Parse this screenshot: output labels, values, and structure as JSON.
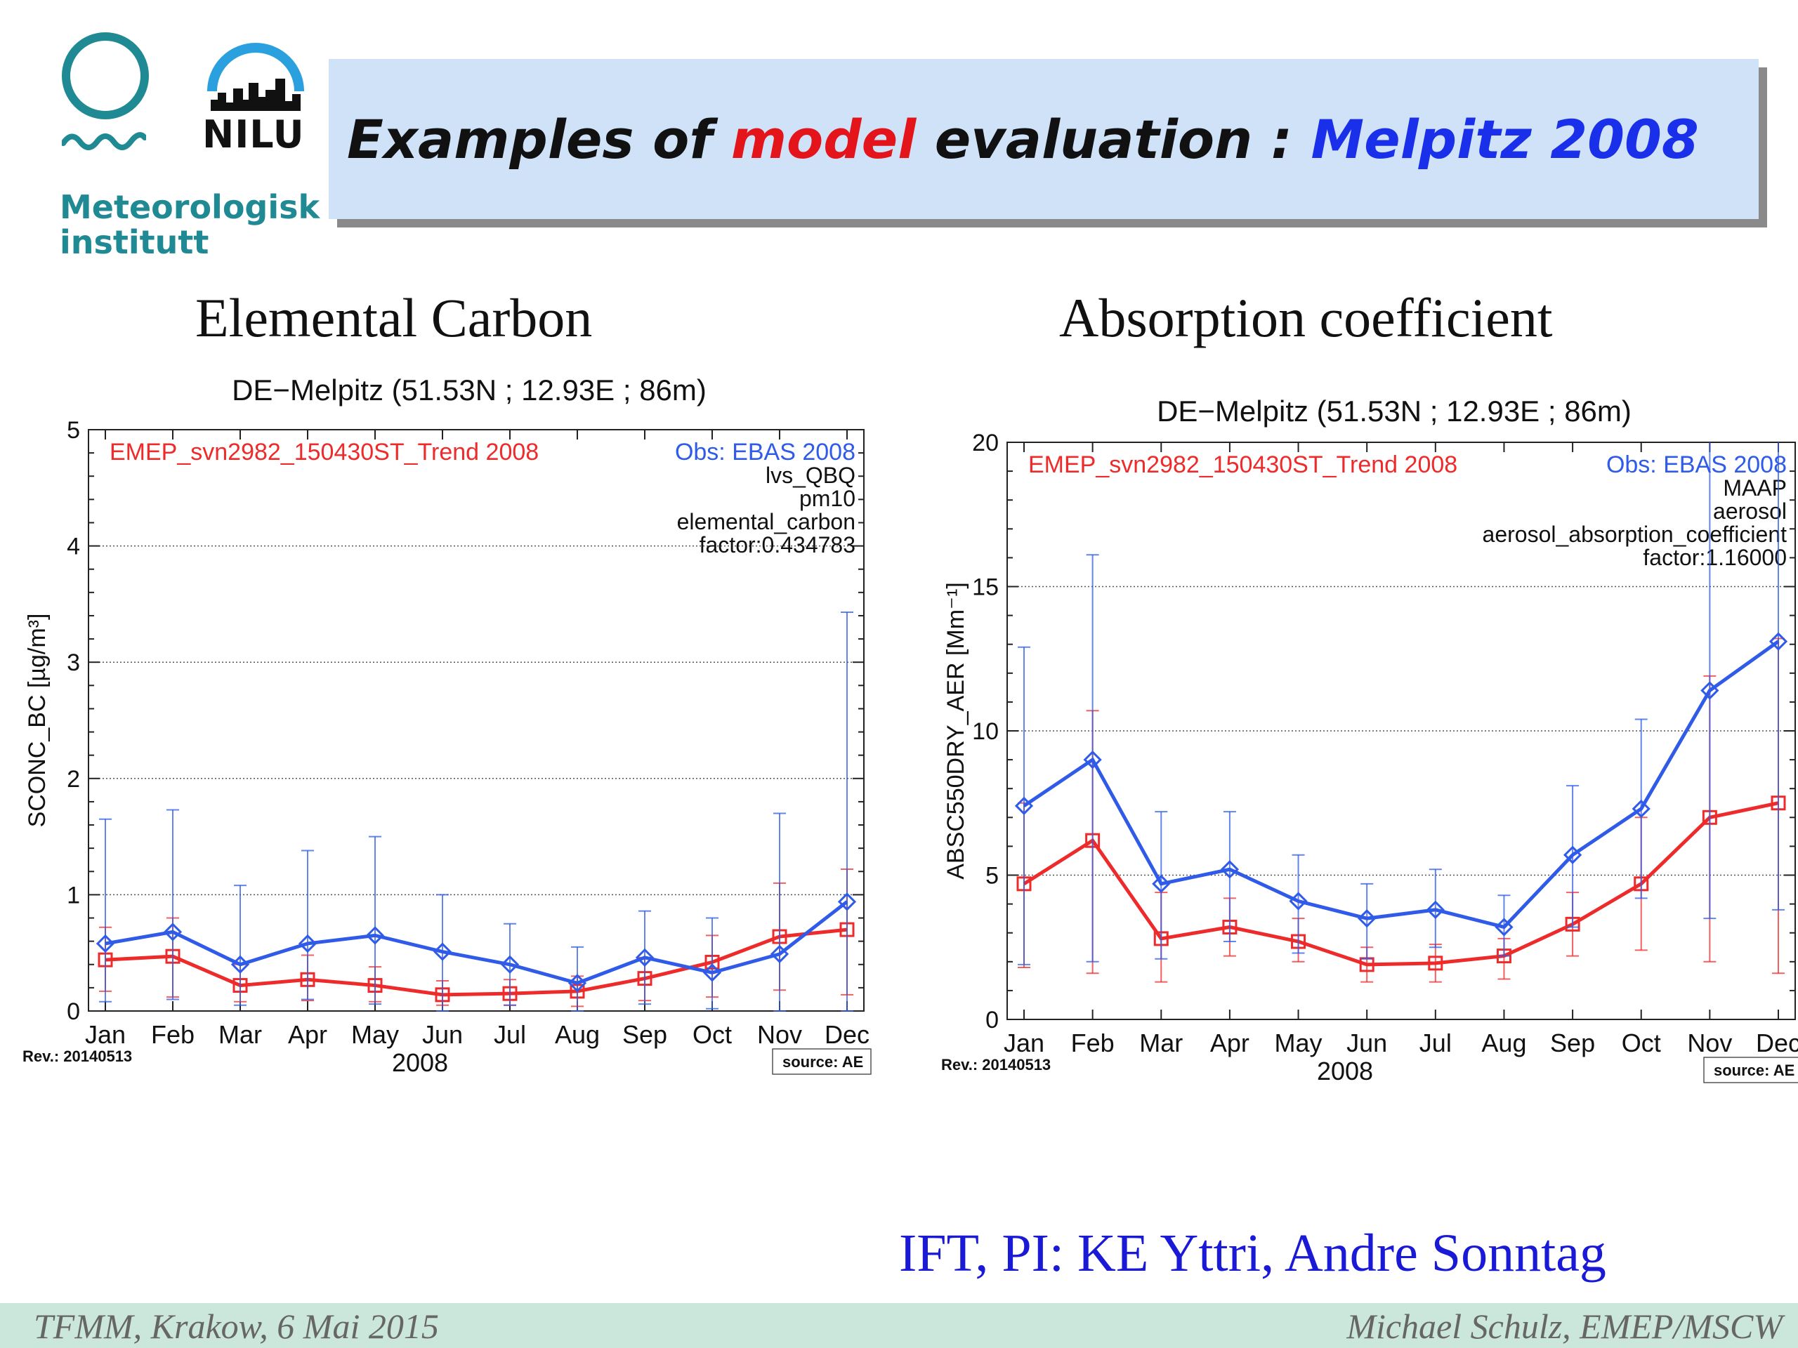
{
  "colors": {
    "model": "#ee2b2b",
    "obs": "#2f5be8",
    "banner": "#cfe2f8",
    "footer": "#cbe6da"
  },
  "logos": {
    "met_line1": "Meteorologisk",
    "met_line2": "institutt",
    "nilu": "NILU"
  },
  "slide_title": {
    "part1": "Examples of ",
    "part2": "model",
    "part3": " evaluation : ",
    "part4": "Melpitz 2008"
  },
  "sections": {
    "left": "Elemental Carbon",
    "right": "Absorption coefficient"
  },
  "credit": "IFT, PI: KE Yttri, Andre Sonntag",
  "footer": {
    "left": "TFMM, Krakow, 6 Mai 2015",
    "right": "Michael Schulz, EMEP/MSCW"
  },
  "chart_data": [
    {
      "type": "line",
      "title": "DE−Melpitz (51.53N ; 12.93E ; 86m)",
      "xlabel": "2008",
      "ylabel": "SCONC_BC [µg/m³]",
      "ylim": [
        0,
        5
      ],
      "yticks": [
        0,
        1,
        2,
        3,
        4,
        5
      ],
      "grid": "dotted at 1, 2, 3, 4",
      "categories": [
        "Jan",
        "Feb",
        "Mar",
        "Apr",
        "May",
        "Jun",
        "Jul",
        "Aug",
        "Sep",
        "Oct",
        "Nov",
        "Dec"
      ],
      "legend_model": "EMEP_svn2982_150430ST_Trend 2008",
      "legend_obs": "Obs: EBAS 2008",
      "info_lines": [
        "lvs_QBQ",
        "pm10",
        "elemental_carbon",
        "factor:0.434783"
      ],
      "rev": "Rev.: 20140513",
      "source": "source: AE",
      "series": [
        {
          "name": "EMEP_svn2982_150430ST_Trend 2008",
          "color": "#ee2b2b",
          "marker": "square",
          "values": [
            0.44,
            0.47,
            0.22,
            0.27,
            0.22,
            0.14,
            0.15,
            0.17,
            0.28,
            0.42,
            0.64,
            0.7
          ],
          "err_low": [
            0.17,
            0.12,
            0.08,
            0.09,
            0.08,
            0.05,
            0.05,
            0.04,
            0.09,
            0.12,
            0.18,
            0.14
          ],
          "err_high": [
            0.72,
            0.8,
            0.4,
            0.48,
            0.38,
            0.26,
            0.27,
            0.3,
            0.46,
            0.65,
            1.1,
            1.22
          ]
        },
        {
          "name": "Obs: EBAS 2008",
          "color": "#2f5be8",
          "marker": "diamond",
          "values": [
            0.58,
            0.68,
            0.4,
            0.58,
            0.65,
            0.51,
            0.4,
            0.24,
            0.46,
            0.33,
            0.49,
            0.94
          ],
          "err_low": [
            0.08,
            0.1,
            0.05,
            0.1,
            0.06,
            0.0,
            0.05,
            0.0,
            0.06,
            0.02,
            0.0,
            0.0
          ],
          "err_high": [
            1.65,
            1.73,
            1.08,
            1.38,
            1.5,
            1.0,
            0.75,
            0.55,
            0.86,
            0.8,
            1.7,
            3.43
          ]
        }
      ]
    },
    {
      "type": "line",
      "title": "DE−Melpitz (51.53N ; 12.93E ; 86m)",
      "xlabel": "2008",
      "ylabel": "ABSC550DRY_AER [Mm⁻¹]",
      "ylim": [
        0,
        20
      ],
      "yticks": [
        0,
        5,
        10,
        15,
        20
      ],
      "grid": "dotted at 5, 10, 15",
      "categories": [
        "Jan",
        "Feb",
        "Mar",
        "Apr",
        "May",
        "Jun",
        "Jul",
        "Aug",
        "Sep",
        "Oct",
        "Nov",
        "Dec"
      ],
      "legend_model": "EMEP_svn2982_150430ST_Trend 2008",
      "legend_obs": "Obs: EBAS 2008",
      "info_lines": [
        "MAAP",
        "aerosol",
        "aerosol_absorption_coefficient",
        "factor:1.16000"
      ],
      "rev": "Rev.: 20140513",
      "source": "source: AE",
      "series": [
        {
          "name": "EMEP_svn2982_150430ST_Trend 2008",
          "color": "#ee2b2b",
          "marker": "square",
          "values": [
            4.7,
            6.2,
            2.8,
            3.2,
            2.7,
            1.9,
            1.95,
            2.2,
            3.3,
            4.7,
            7.0,
            7.5
          ],
          "err_low": [
            1.8,
            1.6,
            1.3,
            2.2,
            2.0,
            1.3,
            1.3,
            1.4,
            2.2,
            2.4,
            2.0,
            1.6
          ],
          "err_high": [
            7.5,
            10.7,
            4.4,
            4.2,
            3.5,
            2.5,
            2.6,
            2.8,
            4.4,
            7.0,
            11.9,
            13.2
          ]
        },
        {
          "name": "Obs: EBAS 2008",
          "color": "#2f5be8",
          "marker": "diamond",
          "values": [
            7.4,
            9.0,
            4.7,
            5.2,
            4.1,
            3.5,
            3.8,
            3.2,
            5.7,
            7.3,
            11.4,
            13.1
          ],
          "err_low": [
            1.9,
            2.0,
            2.1,
            2.7,
            2.3,
            2.1,
            2.5,
            2.2,
            3.2,
            4.2,
            3.5,
            3.8
          ],
          "err_high": [
            12.9,
            16.1,
            7.2,
            7.2,
            5.7,
            4.7,
            5.2,
            4.3,
            8.1,
            10.4,
            20.0,
            20.0
          ]
        }
      ]
    }
  ]
}
